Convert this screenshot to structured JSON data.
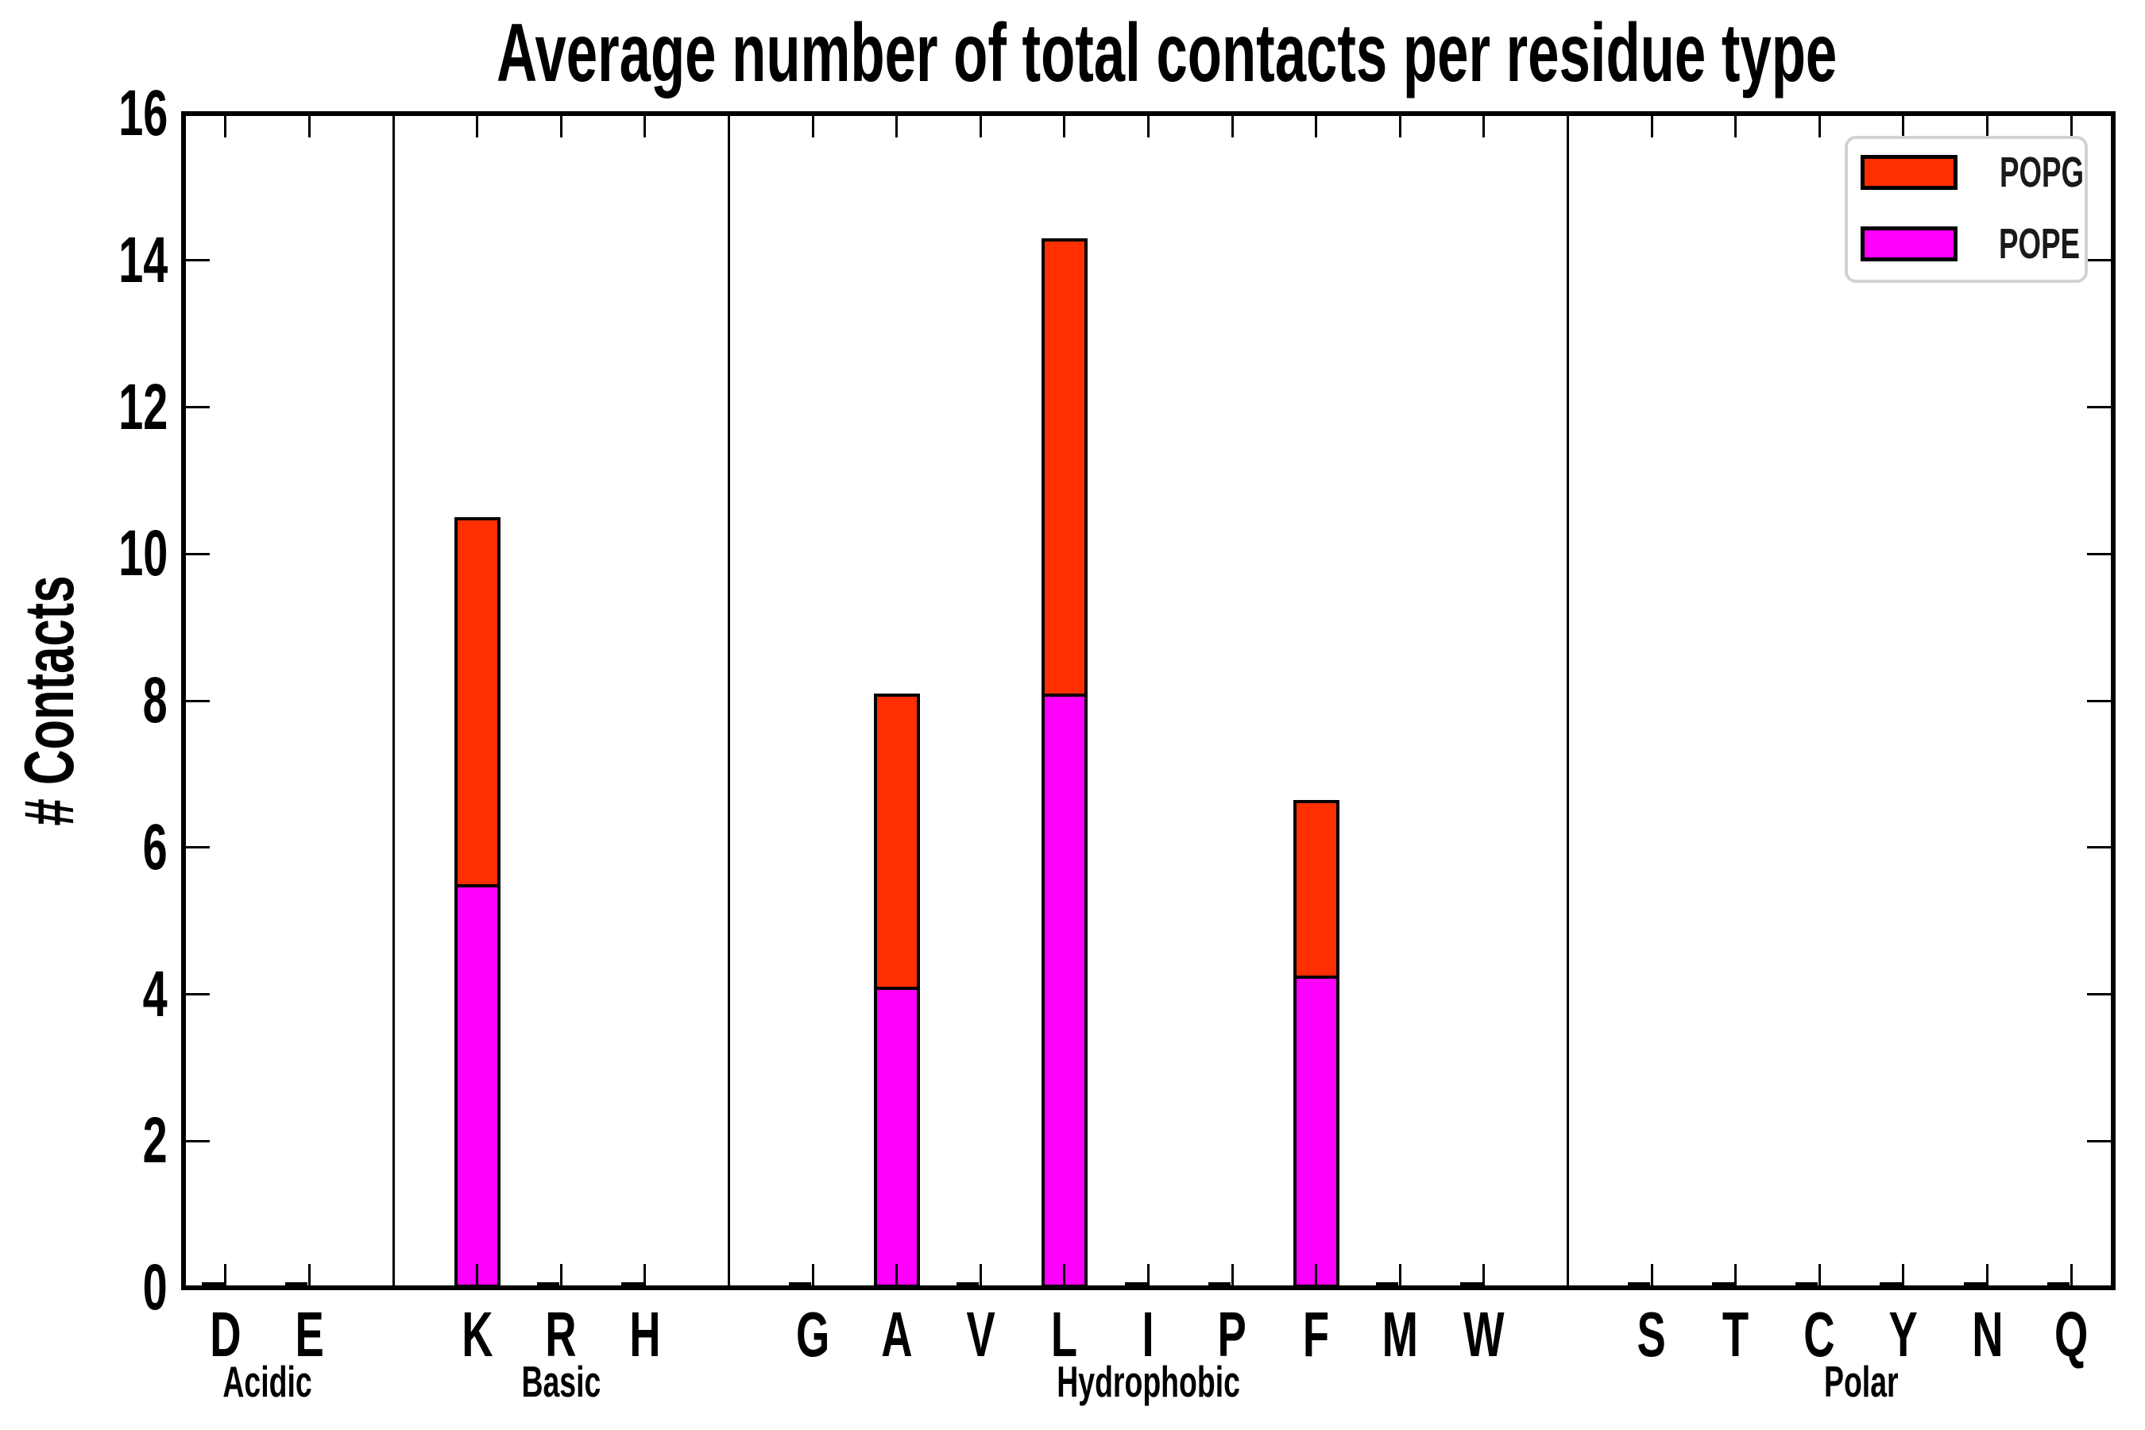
{
  "title": "Average number of total contacts per residue type",
  "ylabel": "# Contacts",
  "legend": {
    "entries": [
      {
        "label": "POPG",
        "color": "#ff2f02"
      },
      {
        "label": "POPE",
        "color": "#ff00ff"
      }
    ]
  },
  "colors": {
    "popg_red": "#ff2f02",
    "pope_magenta": "#ff00ff",
    "axis_black": "#000000",
    "legend_border_gray": "#d2d2d2",
    "background": "#ffffff"
  },
  "chart_data": {
    "type": "bar",
    "stacked": true,
    "title": "Average number of total contacts per residue type",
    "xlabel": "",
    "ylabel": "# Contacts",
    "ylim": [
      0,
      16
    ],
    "yticks": [
      0,
      2,
      4,
      6,
      8,
      10,
      12,
      14,
      16
    ],
    "grid": false,
    "legend_position": "upper right",
    "categories": [
      "D",
      "E",
      "K",
      "R",
      "H",
      "G",
      "A",
      "V",
      "L",
      "I",
      "P",
      "F",
      "M",
      "W",
      "S",
      "T",
      "C",
      "Y",
      "N",
      "Q"
    ],
    "groups": [
      {
        "label": "Acidic",
        "members": [
          "D",
          "E"
        ]
      },
      {
        "label": "Basic",
        "members": [
          "K",
          "R",
          "H"
        ]
      },
      {
        "label": "Hydrophobic",
        "members": [
          "G",
          "A",
          "V",
          "L",
          "I",
          "P",
          "F",
          "M",
          "W"
        ]
      },
      {
        "label": "Polar",
        "members": [
          "S",
          "T",
          "C",
          "Y",
          "N",
          "Q"
        ]
      }
    ],
    "series": [
      {
        "name": "POPE",
        "color": "#ff00ff",
        "values": [
          0.04,
          0.04,
          5.5,
          0.04,
          0.04,
          0.04,
          4.1,
          0.04,
          8.1,
          0.04,
          0.04,
          4.25,
          0.04,
          0.04,
          0.04,
          0.04,
          0.04,
          0.04,
          0.04,
          0.04
        ]
      },
      {
        "name": "POPG",
        "color": "#ff2f02",
        "values": [
          0.04,
          0.04,
          5.0,
          0.04,
          0.04,
          0.04,
          4.0,
          0.04,
          6.2,
          0.04,
          0.04,
          2.4,
          0.04,
          0.04,
          0.04,
          0.04,
          0.04,
          0.04,
          0.04,
          0.04
        ]
      }
    ],
    "totals_note": "stacked totals: K=10.5, A=8.1, L=14.3, F=6.65; all other residues trace (~0.08)"
  }
}
